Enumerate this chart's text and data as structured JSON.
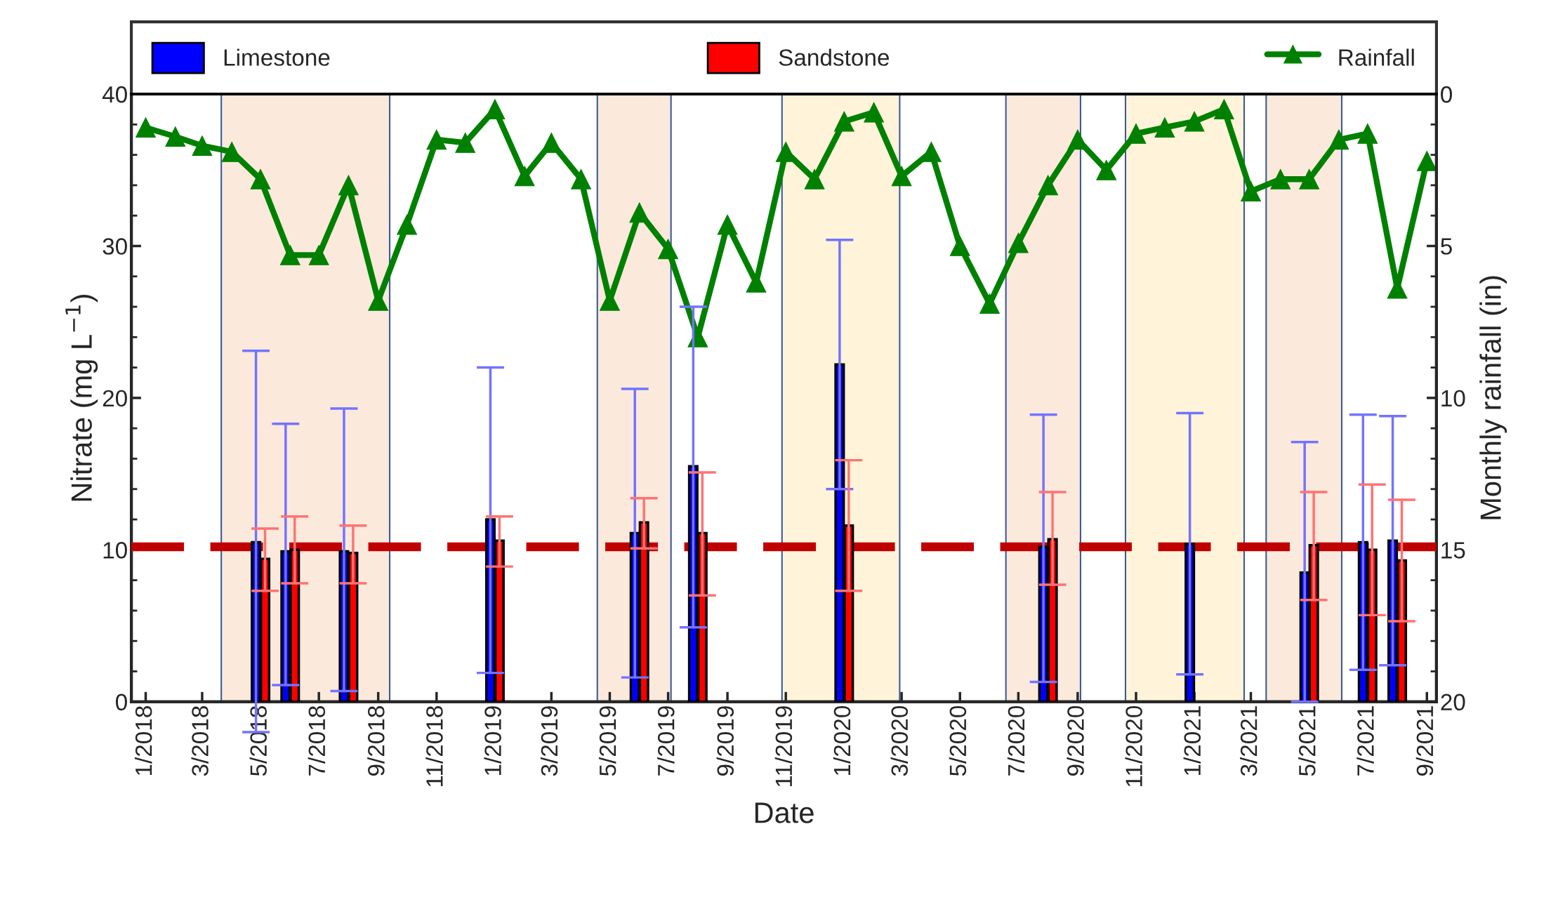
{
  "chart_data": {
    "type": "bar",
    "xlabel": "Date",
    "ylabel": "Nitrate (mg L$^{−1}$)",
    "y2label": "Monthly rainfall (in)",
    "xlim": [
      "2017-12-17",
      "2021-09-11"
    ],
    "xticks": [
      {
        "value": "2018-01",
        "label": "1/2018"
      },
      {
        "value": "2018-03",
        "label": "3/2018"
      },
      {
        "value": "2018-05",
        "label": "5/2018"
      },
      {
        "value": "2018-07",
        "label": "7/2018"
      },
      {
        "value": "2018-09",
        "label": "9/2018"
      },
      {
        "value": "2018-11",
        "label": "11/2018"
      },
      {
        "value": "2019-01",
        "label": "1/2019"
      },
      {
        "value": "2019-03",
        "label": "3/2019"
      },
      {
        "value": "2019-05",
        "label": "5/2019"
      },
      {
        "value": "2019-07",
        "label": "7/2019"
      },
      {
        "value": "2019-09",
        "label": "9/2019"
      },
      {
        "value": "2019-11",
        "label": "11/2019"
      },
      {
        "value": "2020-01",
        "label": "1/2020"
      },
      {
        "value": "2020-03",
        "label": "3/2020"
      },
      {
        "value": "2020-05",
        "label": "5/2020"
      },
      {
        "value": "2020-07",
        "label": "7/2020"
      },
      {
        "value": "2020-09",
        "label": "9/2020"
      },
      {
        "value": "2020-11",
        "label": "11/2020"
      },
      {
        "value": "2021-01",
        "label": "1/2021"
      },
      {
        "value": "2021-03",
        "label": "3/2021"
      },
      {
        "value": "2021-05",
        "label": "5/2021"
      },
      {
        "value": "2021-07",
        "label": "7/2021"
      },
      {
        "value": "2021-09",
        "label": "9/2021"
      }
    ],
    "ylim": [
      0,
      40
    ],
    "yticks": [
      0,
      10,
      20,
      30,
      40
    ],
    "y2lim": [
      20,
      0
    ],
    "y2ticks": [
      0,
      5,
      10,
      15,
      20
    ],
    "legend": "top",
    "grid": false,
    "series": [
      {
        "name": "Limestone",
        "color": "#0000ff",
        "x": [
          "2018-05",
          "2018-06",
          "2018-08",
          "2019-01",
          "2019-06",
          "2019-08",
          "2020-01",
          "2020-08",
          "2021-01",
          "2021-05",
          "2021-07",
          "2021-08"
        ],
        "values": [
          10.5,
          9.9,
          9.9,
          12.0,
          11.1,
          15.5,
          22.2,
          10.2,
          10.4,
          8.5,
          10.5,
          10.6
        ],
        "errors": [
          [
            -2.0,
            23.1
          ],
          [
            1.1,
            18.3
          ],
          [
            0.7,
            19.3
          ],
          [
            1.9,
            22.0
          ],
          [
            1.6,
            20.6
          ],
          [
            4.9,
            26.0
          ],
          [
            14.0,
            30.4
          ],
          [
            1.3,
            18.9
          ],
          [
            1.8,
            19.0
          ],
          [
            0.0,
            17.1
          ],
          [
            2.1,
            18.9
          ],
          [
            2.4,
            18.8
          ]
        ]
      },
      {
        "name": "Sandstone",
        "color": "#ff0000",
        "x": [
          "2018-05",
          "2018-06",
          "2018-08",
          "2019-01",
          "2019-06",
          "2019-08",
          "2020-01",
          "2020-08",
          "2021-01",
          "2021-05",
          "2021-07",
          "2021-08"
        ],
        "values": [
          9.4,
          10.0,
          9.8,
          10.6,
          11.8,
          11.1,
          11.6,
          10.7,
          null,
          10.3,
          10.0,
          9.3
        ],
        "errors": [
          [
            7.3,
            11.4
          ],
          [
            7.8,
            12.2
          ],
          [
            7.8,
            11.6
          ],
          [
            8.9,
            12.2
          ],
          [
            10.1,
            13.4
          ],
          [
            7.0,
            15.1
          ],
          [
            7.3,
            15.9
          ],
          [
            7.7,
            13.8
          ],
          null,
          [
            6.7,
            13.8
          ],
          [
            5.7,
            14.3
          ],
          [
            5.3,
            13.3
          ]
        ]
      },
      {
        "name": "Rainfall",
        "type": "line",
        "axis": "y2",
        "color": "#008000",
        "marker": "triangle",
        "line_style": "solid",
        "x": [
          "2018-01",
          "2018-02",
          "2018-03",
          "2018-04",
          "2018-05",
          "2018-06",
          "2018-07",
          "2018-08",
          "2018-09",
          "2018-10",
          "2018-11",
          "2018-12",
          "2019-01",
          "2019-02",
          "2019-03",
          "2019-04",
          "2019-05",
          "2019-06",
          "2019-07",
          "2019-08",
          "2019-09",
          "2019-10",
          "2019-11",
          "2019-12",
          "2020-01",
          "2020-02",
          "2020-03",
          "2020-04",
          "2020-05",
          "2020-06",
          "2020-07",
          "2020-08",
          "2020-09",
          "2020-10",
          "2020-11",
          "2020-12",
          "2021-01",
          "2021-02",
          "2021-03",
          "2021-04",
          "2021-05",
          "2021-06",
          "2021-07",
          "2021-08",
          "2021-09"
        ],
        "values": [
          1.1,
          1.4,
          1.7,
          1.9,
          2.8,
          5.3,
          5.3,
          3.0,
          6.8,
          4.3,
          1.5,
          1.6,
          0.5,
          2.7,
          1.6,
          2.8,
          6.8,
          3.9,
          5.1,
          8.0,
          4.3,
          6.2,
          1.9,
          2.8,
          0.9,
          0.6,
          2.7,
          1.9,
          5.0,
          6.9,
          4.9,
          3.0,
          1.5,
          2.5,
          1.3,
          1.1,
          0.9,
          0.5,
          3.2,
          2.8,
          2.8,
          1.5,
          1.3,
          6.4,
          2.2
        ]
      }
    ],
    "ref_lines": [
      {
        "axis": "y",
        "value": 10.2,
        "color": "#c00000",
        "line_style": "dashed"
      }
    ],
    "bands": [
      {
        "axis": "x",
        "from": "2018-03-21",
        "to": "2018-09-13",
        "color": "#fbe9dc"
      },
      {
        "axis": "x",
        "from": "2019-04-18",
        "to": "2019-07-04",
        "color": "#fbe9dc"
      },
      {
        "axis": "x",
        "from": "2019-10-28",
        "to": "2020-02-28",
        "color": "#fff4da"
      },
      {
        "axis": "x",
        "from": "2020-06-18",
        "to": "2020-09-04",
        "color": "#fbe9dc"
      },
      {
        "axis": "x",
        "from": "2020-10-21",
        "to": "2021-02-22",
        "color": "#fff4da"
      },
      {
        "axis": "x",
        "from": "2021-03-17",
        "to": "2021-06-04",
        "color": "#fbe9dc"
      }
    ]
  }
}
